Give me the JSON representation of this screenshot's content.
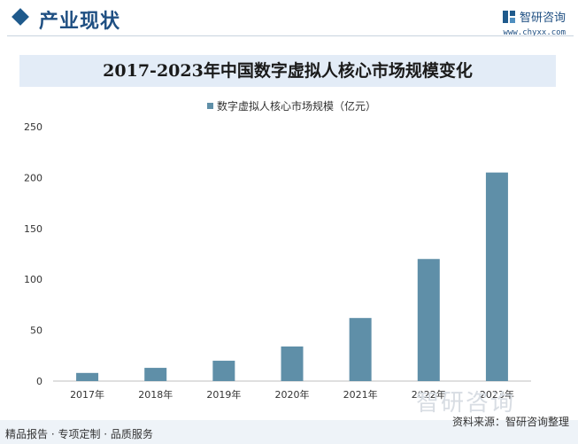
{
  "header": {
    "section_title": "产业现状",
    "brand_name": "智研咨询",
    "brand_url": "www.chyxx.com"
  },
  "chart_data": {
    "type": "bar",
    "title": "2017-2023年中国数字虚拟人核心市场规模变化",
    "categories": [
      "2017年",
      "2018年",
      "2019年",
      "2020年",
      "2021年",
      "2022年",
      "2023年"
    ],
    "series": [
      {
        "name": "数字虚拟人核心市场规模（亿元）",
        "values": [
          8,
          13,
          20,
          34,
          62,
          120,
          205
        ]
      }
    ],
    "ylim": [
      0,
      250
    ],
    "yticks": [
      "0",
      "50",
      "100",
      "150",
      "200",
      "250"
    ],
    "grid": false,
    "legend": "top-center",
    "bar_color": "#5f8fa8"
  },
  "watermark": {
    "brand": "智研咨询"
  },
  "footer": {
    "left_text": "精品报告 · 专项定制 · 品质服务",
    "source_text": "资料来源：智研咨询整理"
  }
}
